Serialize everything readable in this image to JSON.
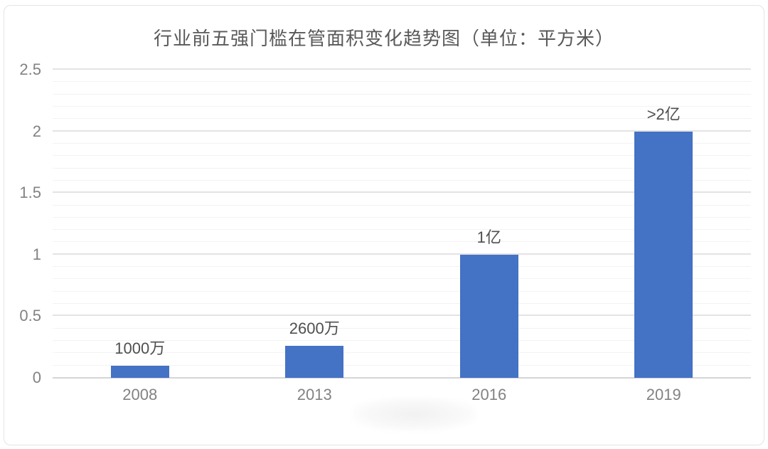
{
  "chart_data": {
    "type": "bar",
    "title": "行业前五强门槛在管面积变化趋势图（单位：平方米）",
    "categories": [
      "2008",
      "2013",
      "2016",
      "2019"
    ],
    "values": [
      0.1,
      0.26,
      1,
      2
    ],
    "data_labels": [
      "1000万",
      "2600万",
      "1亿",
      ">2亿"
    ],
    "unit": "平方米",
    "xlabel": "",
    "ylabel": "",
    "ylim": [
      0,
      2.5
    ],
    "y_ticks": [
      "0",
      "0.5",
      "1",
      "1.5",
      "2",
      "2.5"
    ],
    "grid": "horizontal; minor lines every 0.1, major lines every 0.5",
    "legend": "none",
    "colors": {
      "bar": "#4472c4",
      "title_text": "#595959",
      "axis_text": "#828282",
      "data_label_text": "#4f4f4f",
      "major_gridline": "#e3e3e3",
      "minor_gridline": "#f3f3f3",
      "axis_line": "#d6d6d6",
      "frame_border": "#e4e4e4"
    },
    "watermark": "faint illegible light-gray watermark smudge bottom center"
  }
}
